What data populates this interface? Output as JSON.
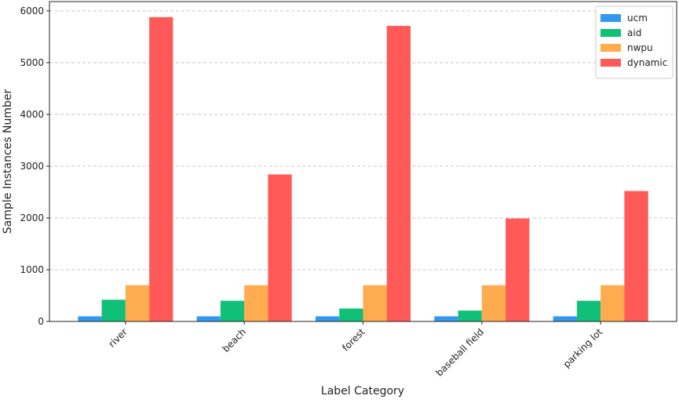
{
  "chart_data": {
    "type": "grouped_bar",
    "x_label": "Label Category",
    "y_label": "Sample Instances Number",
    "categories": [
      "river",
      "beach",
      "forest",
      "baseball field",
      "parking lot"
    ],
    "series": [
      {
        "name": "ucm",
        "color": "#3399f0",
        "values": [
          100,
          100,
          100,
          100,
          100
        ]
      },
      {
        "name": "aid",
        "color": "#10c078",
        "values": [
          420,
          400,
          250,
          210,
          400
        ]
      },
      {
        "name": "nwpu",
        "color": "#ffab4f",
        "values": [
          700,
          700,
          700,
          700,
          700
        ]
      },
      {
        "name": "dynamic",
        "color": "#ff5a58",
        "values": [
          5880,
          2840,
          5710,
          1990,
          2520
        ]
      }
    ],
    "ylim": [
      0,
      6180
    ],
    "yticks": [
      0,
      1000,
      2000,
      3000,
      4000,
      5000,
      6000
    ],
    "grid": true,
    "legend": "upper right"
  }
}
